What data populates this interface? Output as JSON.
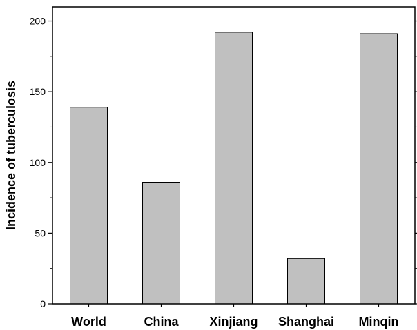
{
  "chart_data": {
    "type": "bar",
    "title": "",
    "xlabel": "",
    "ylabel": "Incidence of tuberculosis",
    "categories": [
      "World",
      "China",
      "Xinjiang",
      "Shanghai",
      "Minqin"
    ],
    "values": [
      139,
      86,
      192,
      32,
      191
    ],
    "ylim": [
      0,
      210
    ],
    "yticks": [
      0,
      50,
      100,
      150,
      200
    ],
    "bar_color": "#c0c0c0",
    "bar_edge_color": "#000000",
    "grid": false,
    "legend": "none"
  }
}
